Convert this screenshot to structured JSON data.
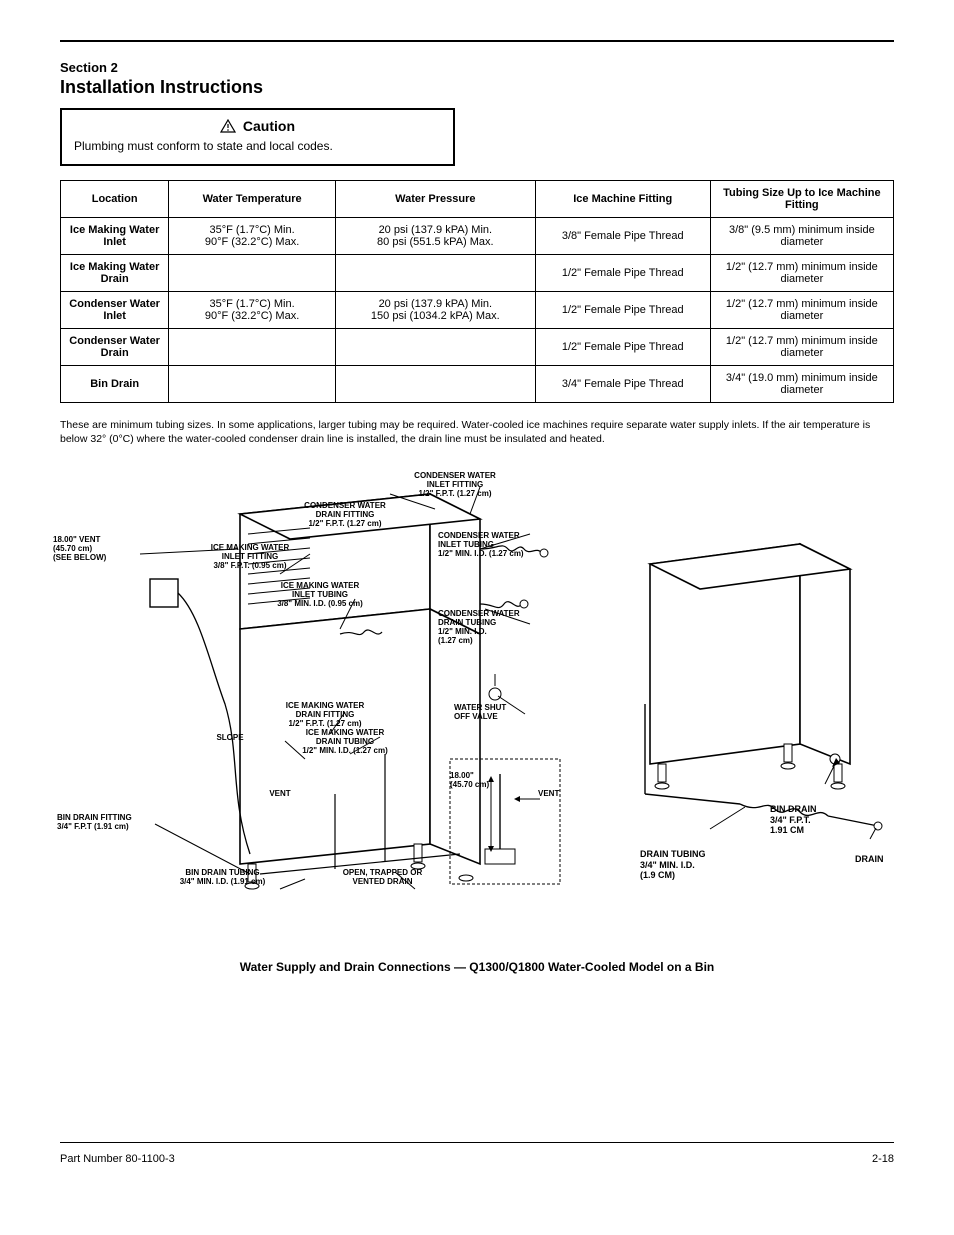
{
  "header": {
    "section_sub": "Section 2",
    "section_main": "Installation Instructions"
  },
  "caution": {
    "heading": "Caution",
    "body": "Plumbing must conform to state and local codes."
  },
  "table": {
    "headers": [
      "Location",
      "Water Temperature",
      "Water Pressure",
      "Ice Machine Fitting",
      "Tubing Size Up to Ice Machine Fitting"
    ],
    "rows": [
      {
        "loc": "Ice Making Water Inlet",
        "temp": "35°F (1.7°C) Min.\n90°F (32.2°C) Max.",
        "press": "20 psi (137.9 kPA) Min.\n80 psi (551.5 kPA) Max.",
        "fit": "3/8\" Female Pipe Thread",
        "tube": "3/8\" (9.5 mm) minimum inside diameter"
      },
      {
        "loc": "Ice Making Water Drain",
        "temp": "",
        "press": "",
        "fit": "1/2\" Female Pipe Thread",
        "tube": "1/2\" (12.7 mm) minimum inside diameter"
      },
      {
        "loc": "Condenser Water Inlet",
        "temp": "35°F (1.7°C) Min.\n90°F (32.2°C) Max.",
        "press": "20 psi (137.9 kPA) Min.\n150 psi (1034.2 kPA) Max.",
        "fit": "1/2\" Female Pipe Thread",
        "tube": "1/2\" (12.7 mm) minimum inside diameter"
      },
      {
        "loc": "Condenser Water Drain",
        "temp": "",
        "press": "",
        "fit": "1/2\" Female Pipe Thread",
        "tube": "1/2\" (12.7 mm) minimum inside diameter"
      },
      {
        "loc": "Bin Drain",
        "temp": "",
        "press": "",
        "fit": "3/4\" Female Pipe Thread",
        "tube": "3/4\" (19.0 mm) minimum inside diameter"
      }
    ]
  },
  "notes": [
    "These are minimum tubing sizes. In some applications, larger tubing may be required. Water-cooled ice machines require separate water supply inlets. If the air temperature is below 32° (0°C) where the water-cooled condenser drain line is installed, the drain line must be insulated and heated."
  ],
  "diagram": {
    "labels": {
      "vent18": "18.00\" VENT\n(45.70 cm)\n(SEE BELOW)",
      "cond_inlet_fit": "CONDENSER WATER\nINLET FITTING\n1/2\" F.P.T. (1.27 cm)",
      "cond_drain_fit": "CONDENSER WATER\nDRAIN FITTING\n1/2\" F.P.T. (1.27 cm)",
      "cond_inlet_tube": "CONDENSER WATER\nINLET TUBING\n1/2\" MIN. I.D. (1.27 cm)",
      "cond_drain_tube": "CONDENSER WATER\nDRAIN TUBING\n1/2\" MIN. I.D.\n(1.27 cm)",
      "ice_inlet_fit": "ICE MAKING WATER\nINLET FITTING\n3/8\" F.P.T. (0.95 cm)",
      "ice_inlet_tube": "ICE MAKING WATER\nINLET TUBING\n3/8\" MIN. I.D. (0.95 cm)",
      "ice_drain_fit": "ICE MAKING WATER\nDRAIN FITTING\n1/2\" F.P.T. (1.27 cm)",
      "ice_drain_tube": "ICE MAKING WATER\nDRAIN TUBING\n1/2\" MIN. I.D. (1.27 cm)",
      "shutoff": "WATER SHUT\nOFF VALVE",
      "slope": "SLOPE",
      "vent": "VENT",
      "bin_drain_fit": "BIN DRAIN FITTING\n3/4\" F.P.T (1.91 cm)",
      "bin_drain_tube": "BIN DRAIN TUBING\n3/4\" MIN. I.D. (1.91 cm)",
      "open_drain": "OPEN, TRAPPED OR\nVENTED DRAIN",
      "inset_vent": "VENT",
      "inset_dim": "18.00\"\n(45.70 cm)",
      "right_bin_drain": "BIN DRAIN\n3/4\" F.P.T.\n1.91 CM",
      "right_drain_tube": "DRAIN TUBING\n3/4\" MIN. I.D.\n(1.9 CM)",
      "right_drain": "DRAIN"
    },
    "caption": "Water Supply and Drain Connections — Q1300/Q1800 Water-Cooled Model on a Bin"
  },
  "footer": {
    "left": "Part Number 80-1100-3",
    "right": "2-18"
  }
}
